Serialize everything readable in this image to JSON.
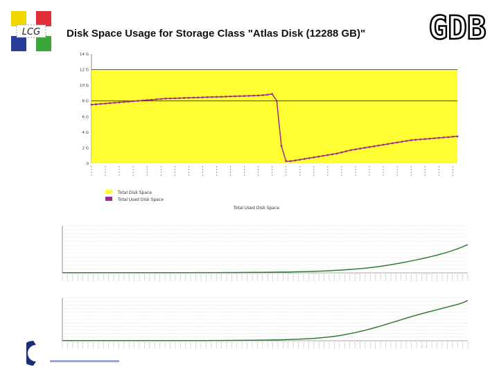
{
  "slide": {
    "title": "Disk Space Usage for Storage Class \"Atlas Disk (12288 GB)\"",
    "logo_left_text": "LCG",
    "logo_right_text": "GDB"
  },
  "colors": {
    "plot_yellow": "#ffff33",
    "used_purple": "#a0288c",
    "growth_green": "#2e7d32",
    "logo_yellow": "#f2d600",
    "logo_red": "#e0303a",
    "logo_blue": "#2a3d9a",
    "logo_green": "#3aa53a"
  },
  "chart_data": [
    {
      "type": "area",
      "title": "",
      "ylabel": "",
      "ylim": [
        0,
        14336
      ],
      "yticks": [
        0,
        2048,
        4096,
        6144,
        8192,
        10240,
        12288,
        14336
      ],
      "ytick_labels": [
        "0",
        "2 G",
        "4 G",
        "6 G",
        "8 G",
        "10 G",
        "12 G",
        "14 G"
      ],
      "reference_lines": [
        8192,
        12288
      ],
      "legend_position": "bottom-left",
      "series": [
        {
          "name": "Total Disk Space",
          "kind": "area",
          "color": "#ffff33",
          "values": [
            12288,
            12288,
            12288,
            12288,
            12288,
            12288,
            12288,
            12288,
            12288,
            12288,
            12288,
            12288,
            12288,
            12288,
            12288,
            12288,
            12288,
            12288,
            12288,
            12288,
            12288,
            12288,
            12288,
            12288,
            12288,
            12288,
            12288,
            12288,
            12288,
            12288,
            12288,
            12288,
            12288,
            12288,
            12288,
            12288,
            12288,
            12288,
            12288,
            12288,
            12288,
            12288,
            12288,
            12288,
            12288,
            12288,
            12288,
            12288,
            12288,
            12288,
            12288,
            12288,
            12288,
            12288,
            12288,
            12288,
            12288,
            12288,
            12288,
            12288,
            12288,
            12288,
            12288,
            12288,
            12288,
            12288,
            12288,
            12288,
            12288,
            12288,
            12288,
            12288,
            12288,
            12288,
            12288,
            12288,
            12288,
            12288,
            12288,
            12288
          ]
        },
        {
          "name": "Total Used Disk Space",
          "kind": "line",
          "color": "#a0288c",
          "values": [
            7700,
            7750,
            7800,
            7850,
            7900,
            7950,
            8000,
            8050,
            8100,
            8150,
            8200,
            8250,
            8300,
            8350,
            8400,
            8450,
            8500,
            8520,
            8540,
            8560,
            8580,
            8600,
            8620,
            8640,
            8660,
            8680,
            8700,
            8720,
            8740,
            8760,
            8780,
            8800,
            8820,
            8840,
            8860,
            8880,
            8900,
            8950,
            9000,
            9100,
            8200,
            2300,
            300,
            300,
            400,
            500,
            600,
            700,
            800,
            900,
            1000,
            1100,
            1200,
            1300,
            1450,
            1600,
            1750,
            1850,
            1950,
            2050,
            2150,
            2250,
            2350,
            2450,
            2550,
            2650,
            2750,
            2850,
            2950,
            3050,
            3100,
            3150,
            3200,
            3250,
            3300,
            3350,
            3400,
            3450,
            3500,
            3550
          ]
        }
      ]
    },
    {
      "type": "line",
      "title": "Total Used Disk Space",
      "ylabel": "",
      "ylim": [
        0,
        1300000
      ],
      "series": [
        {
          "name": "",
          "color": "#2e7d32",
          "values": [
            5000,
            5000,
            5000,
            5000,
            5000,
            5000,
            5000,
            5000,
            5000,
            5000,
            5000,
            5000,
            5000,
            5000,
            5000,
            5000,
            5000,
            5000,
            5000,
            5000,
            6000,
            6000,
            6000,
            6000,
            6000,
            6000,
            7000,
            7000,
            7000,
            7000,
            8000,
            8000,
            9000,
            9000,
            10000,
            11000,
            12000,
            13000,
            14000,
            15000,
            17000,
            19000,
            21000,
            23000,
            25000,
            28000,
            31000,
            34000,
            38000,
            43000,
            48000,
            54000,
            60000,
            67000,
            75000,
            84000,
            94000,
            105000,
            117000,
            130000,
            145000,
            162000,
            181000,
            202000,
            225000,
            250000,
            275000,
            300000,
            330000,
            360000,
            390000,
            420000,
            455000,
            490000,
            530000,
            570000,
            615000,
            665000,
            720000,
            780000
          ]
        }
      ]
    },
    {
      "type": "line",
      "title": "Total Used Disk Space",
      "ylabel": "",
      "ylim": [
        0,
        1300000
      ],
      "series": [
        {
          "name": "",
          "color": "#2e7d32",
          "values": [
            5000,
            5000,
            5000,
            5000,
            5000,
            5000,
            5000,
            5000,
            5000,
            5000,
            5000,
            5000,
            5000,
            5000,
            5000,
            5000,
            5000,
            5000,
            5000,
            5000,
            5000,
            5000,
            5000,
            5000,
            6000,
            6000,
            6000,
            7000,
            7000,
            8000,
            8000,
            9000,
            10000,
            11000,
            12000,
            13000,
            14000,
            16000,
            18000,
            20000,
            22000,
            25000,
            28000,
            32000,
            36000,
            41000,
            47000,
            54000,
            62000,
            72000,
            84000,
            98000,
            115000,
            135000,
            158000,
            184000,
            213000,
            245000,
            280000,
            318000,
            358000,
            400000,
            445000,
            492000,
            540000,
            588000,
            636000,
            684000,
            730000,
            775000,
            818000,
            860000,
            900000,
            940000,
            980000,
            1020000,
            1060000,
            1100000,
            1150000,
            1220000
          ]
        }
      ]
    }
  ]
}
